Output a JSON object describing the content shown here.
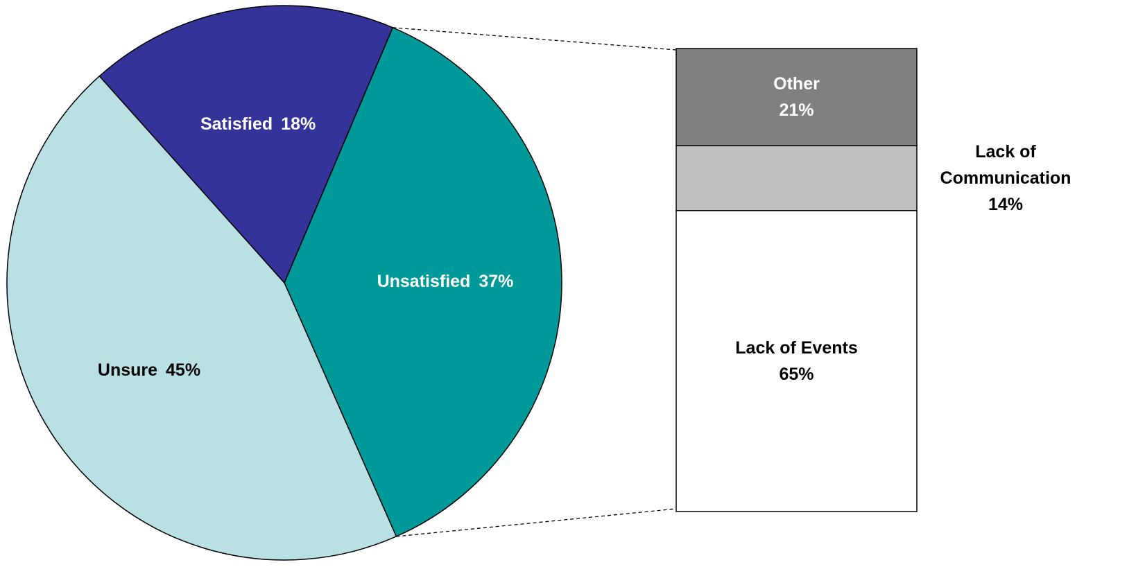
{
  "chart_data": {
    "type": "pie-of-bar",
    "pie": {
      "categories": [
        "Unsatisfied",
        "Unsure",
        "Satisfied"
      ],
      "values": [
        37,
        45,
        18
      ],
      "value_labels": [
        "37%",
        "45%",
        "18%"
      ],
      "colors": [
        "#009999",
        "#b9e0e3",
        "#333399"
      ]
    },
    "bar": {
      "categories": [
        "Other",
        "Lack of Communication",
        "Lack of Events"
      ],
      "values": [
        21,
        14,
        65
      ],
      "value_labels": [
        "21%",
        "14%",
        "65%"
      ],
      "colors": [
        "#808080",
        "#c0c0c0",
        "#ffffff"
      ]
    }
  }
}
